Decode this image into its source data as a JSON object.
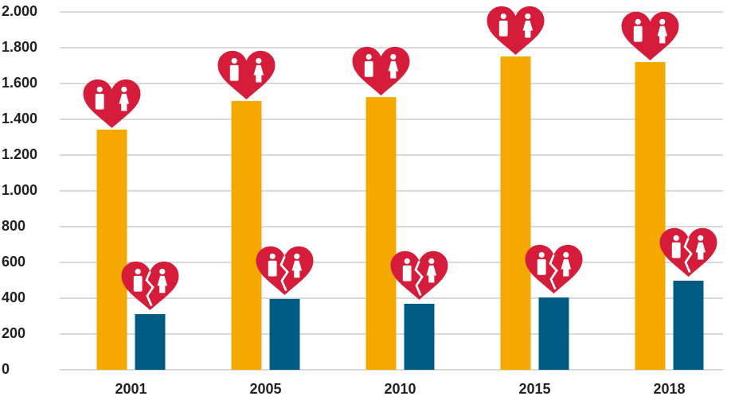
{
  "chart_data": {
    "type": "bar",
    "categories": [
      "2001",
      "2005",
      "2010",
      "2015",
      "2018"
    ],
    "series": [
      {
        "color": "#f5a900",
        "values": [
          1342,
          1502,
          1524,
          1751,
          1720
        ]
      },
      {
        "color": "#005b82",
        "values": [
          311,
          396,
          369,
          404,
          498
        ]
      }
    ],
    "ylim": [
      0,
      2000
    ],
    "yticks": [
      0,
      200,
      400,
      600,
      800,
      {
        "value": 1000,
        "label": "1.000"
      },
      {
        "value": 1200,
        "label": "1.200"
      },
      {
        "value": 1400,
        "label": "1.400"
      },
      {
        "value": 1600,
        "label": "1.600"
      },
      {
        "value": 1800,
        "label": "1.800"
      },
      {
        "value": 2000,
        "label": "2.000"
      }
    ],
    "grid": true
  }
}
